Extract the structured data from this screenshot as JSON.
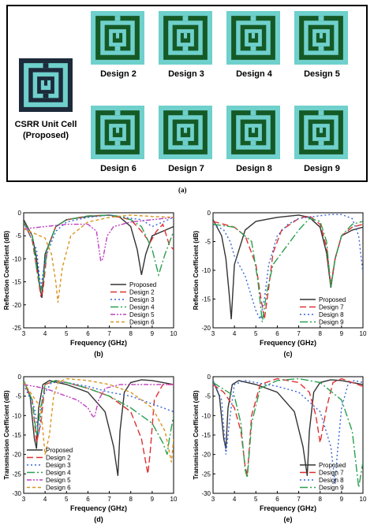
{
  "panel_a": {
    "unit_cell_label_line1": "CSRR Unit Cell",
    "unit_cell_label_line2": "(Proposed)",
    "designs": [
      "Design 2",
      "Design 3",
      "Design 4",
      "Design 5",
      "Design 6",
      "Design 7",
      "Design 8",
      "Design 9"
    ],
    "caption": "(a)",
    "colors": {
      "outer": "#6fd0cc",
      "ring": "#155a26",
      "unit_bg": "#1d2a3a"
    }
  },
  "chart_data": [
    {
      "id": "b",
      "type": "line",
      "caption": "(b)",
      "xlabel": "Frequency (GHz)",
      "ylabel": "Reflection Coefficient (dB)",
      "xlim": [
        3,
        10
      ],
      "ylim": [
        -25,
        0
      ],
      "xticks": [
        3,
        4,
        5,
        6,
        7,
        8,
        9,
        10
      ],
      "yticks": [
        0,
        -5,
        -10,
        -15,
        -20,
        -25
      ],
      "legend_position": "lower-right",
      "series": [
        {
          "name": "Proposed",
          "color": "#333333",
          "dash": "solid",
          "x": [
            3,
            3.4,
            3.6,
            3.75,
            3.85,
            4,
            4.5,
            5,
            6,
            7,
            7.5,
            8,
            8.3,
            8.5,
            8.7,
            9,
            9.5,
            10
          ],
          "y": [
            -1.5,
            -5,
            -10,
            -16,
            -18.5,
            -9,
            -3,
            -1.5,
            -0.8,
            -0.5,
            -1,
            -3,
            -8,
            -13.5,
            -9,
            -5,
            -4,
            -3
          ]
        },
        {
          "name": "Design 2",
          "color": "#e03030",
          "dash": "8,4",
          "x": [
            3,
            3.4,
            3.6,
            3.8,
            3.9,
            4.1,
            4.5,
            5,
            6,
            7,
            8,
            8.5,
            8.9,
            9.2,
            9.5,
            9.8,
            10
          ],
          "y": [
            -2,
            -6,
            -12,
            -18,
            -17,
            -8,
            -3,
            -1.5,
            -0.7,
            -0.5,
            -1.5,
            -4,
            -6.5,
            -4,
            -2.5,
            -7,
            -8
          ]
        },
        {
          "name": "Design 3",
          "color": "#3a66d8",
          "dash": "2,3",
          "x": [
            3,
            3.6,
            3.8,
            4,
            4.5,
            5,
            6,
            7,
            7.5,
            8,
            8.5,
            9,
            9.5,
            10
          ],
          "y": [
            -2,
            -8,
            -16.5,
            -10,
            -4,
            -2,
            -1,
            -0.5,
            -0.8,
            -1.2,
            -1.5,
            -3,
            -2,
            -1
          ]
        },
        {
          "name": "Design 4",
          "color": "#2aa050",
          "dash": "10,3,2,3",
          "x": [
            3,
            3.4,
            3.6,
            3.8,
            3.9,
            4.1,
            4.5,
            5,
            6,
            7,
            7.5,
            8,
            8.5,
            9,
            9.3,
            9.6,
            10
          ],
          "y": [
            -2,
            -5,
            -12,
            -17,
            -15,
            -8,
            -3,
            -1.5,
            -0.7,
            -0.5,
            -0.8,
            -1.5,
            -3,
            -8,
            -13.5,
            -9,
            -4
          ]
        },
        {
          "name": "Design 5",
          "color": "#c040c0",
          "dash": "6,2,2,2,2,2",
          "x": [
            3,
            4,
            5,
            6,
            6.4,
            6.6,
            6.7,
            6.9,
            7.2,
            8,
            9,
            10
          ],
          "y": [
            -3.5,
            -3,
            -2.5,
            -2.5,
            -4,
            -10.5,
            -10,
            -5,
            -3,
            -2,
            -1.5,
            -1
          ]
        },
        {
          "name": "Design 6",
          "color": "#d99520",
          "dash": "4,3",
          "x": [
            3,
            4,
            4.3,
            4.5,
            4.6,
            4.8,
            5.2,
            6,
            7,
            8,
            9,
            10
          ],
          "y": [
            -3.5,
            -5.5,
            -9,
            -15,
            -19.5,
            -12,
            -5,
            -2,
            -1,
            -0.5,
            -0.8,
            -1
          ]
        }
      ]
    },
    {
      "id": "c",
      "type": "line",
      "caption": "(c)",
      "xlabel": "Frequency (GHz)",
      "ylabel": "Reflection Coefficient (dB)",
      "xlim": [
        3,
        10
      ],
      "ylim": [
        -20,
        0
      ],
      "xticks": [
        3,
        4,
        5,
        6,
        7,
        8,
        9,
        10
      ],
      "yticks": [
        0,
        -5,
        -10,
        -15,
        -20
      ],
      "legend_position": "lower-right",
      "series": [
        {
          "name": "Proposed",
          "color": "#333333",
          "dash": "solid",
          "x": [
            3,
            3.4,
            3.6,
            3.75,
            3.85,
            4,
            4.5,
            5,
            6,
            7,
            7.5,
            8,
            8.3,
            8.5,
            8.7,
            9,
            9.5,
            10
          ],
          "y": [
            -1.2,
            -4,
            -8,
            -14,
            -18.5,
            -9,
            -3,
            -1.5,
            -0.8,
            -0.4,
            -0.8,
            -2.5,
            -7,
            -13,
            -8,
            -4,
            -3,
            -2.5
          ]
        },
        {
          "name": "Design 7",
          "color": "#e03030",
          "dash": "8,4",
          "x": [
            3,
            3.5,
            4,
            4.5,
            5,
            5.2,
            5.4,
            5.6,
            5.8,
            6.2,
            7,
            7.5,
            8,
            8.3,
            8.5,
            8.7,
            9,
            9.5,
            10
          ],
          "y": [
            -1.5,
            -2,
            -2.5,
            -4,
            -9,
            -14,
            -18.5,
            -13,
            -7,
            -3,
            -1,
            -0.5,
            -2,
            -6,
            -12.5,
            -8,
            -4,
            -2.5,
            -2
          ]
        },
        {
          "name": "Design 8",
          "color": "#3a66d8",
          "dash": "2,3",
          "x": [
            3,
            3.5,
            3.8,
            4,
            4.5,
            5,
            5.2,
            5.4,
            5.6,
            6,
            6.5,
            7,
            8,
            8.5,
            9,
            9.5,
            9.8,
            10
          ],
          "y": [
            -2,
            -3,
            -5,
            -7.5,
            -11,
            -17,
            -18.5,
            -15,
            -9,
            -4,
            -2,
            -1,
            -0.5,
            -0.3,
            -0.3,
            -1,
            -4,
            -10.5
          ]
        },
        {
          "name": "Design 9",
          "color": "#2aa050",
          "dash": "10,3,2,3",
          "x": [
            3,
            4,
            4.8,
            5.1,
            5.3,
            5.5,
            5.8,
            6.5,
            7,
            7.5,
            8,
            8.3,
            8.5,
            8.7,
            9,
            9.5,
            10
          ],
          "y": [
            -2,
            -2.5,
            -5,
            -12,
            -19,
            -14,
            -9,
            -5.5,
            -3,
            -1,
            -1.5,
            -5,
            -13,
            -8,
            -4,
            -2,
            -1.5
          ]
        }
      ]
    },
    {
      "id": "d",
      "type": "line",
      "caption": "(d)",
      "xlabel": "Frequency (GHz)",
      "ylabel": "Transmission Coefficient (dB)",
      "xlim": [
        3,
        10
      ],
      "ylim": [
        -30,
        0
      ],
      "xticks": [
        3,
        4,
        5,
        6,
        7,
        8,
        9,
        10
      ],
      "yticks": [
        0,
        -5,
        -10,
        -15,
        -20,
        -25,
        -30
      ],
      "legend_position": "lower-left",
      "series": [
        {
          "name": "Proposed",
          "color": "#333333",
          "dash": "solid",
          "x": [
            3,
            3.3,
            3.5,
            3.6,
            3.7,
            3.9,
            4.2,
            5,
            6,
            6.8,
            7.2,
            7.4,
            7.5,
            7.7,
            8,
            8.5,
            9,
            10
          ],
          "y": [
            -1,
            -5,
            -16,
            -18.5,
            -8,
            -2,
            -1,
            -2,
            -4,
            -9,
            -18,
            -25.5,
            -14,
            -4,
            -1.5,
            -0.8,
            -1,
            -2
          ]
        },
        {
          "name": "Design 2",
          "color": "#e03030",
          "dash": "8,4",
          "x": [
            3,
            3.4,
            3.6,
            3.8,
            4,
            4.5,
            5,
            6,
            7,
            8,
            8.5,
            8.8,
            8.9,
            9.1,
            9.5,
            10
          ],
          "y": [
            -1,
            -6,
            -17,
            -12,
            -2,
            -1,
            -1.5,
            -3,
            -5,
            -9,
            -16,
            -25,
            -20,
            -6,
            -2,
            -2
          ]
        },
        {
          "name": "Design 3",
          "color": "#3a66d8",
          "dash": "2,3",
          "x": [
            3,
            3.5,
            3.7,
            3.9,
            4.3,
            5,
            6,
            7,
            8,
            9,
            10
          ],
          "y": [
            -2,
            -8,
            -15,
            -5,
            -1.5,
            -1.5,
            -2.5,
            -4,
            -5,
            -7,
            -9
          ]
        },
        {
          "name": "Design 4",
          "color": "#2aa050",
          "dash": "10,3,2,3",
          "x": [
            3,
            3.4,
            3.6,
            3.8,
            4,
            4.5,
            5,
            6,
            7,
            8,
            9,
            9.5,
            9.7,
            9.8,
            10
          ],
          "y": [
            -1,
            -6,
            -15,
            -8,
            -2,
            -1,
            -1.5,
            -3,
            -5,
            -8,
            -12,
            -17,
            -20,
            -16,
            -10
          ]
        },
        {
          "name": "Design 5",
          "color": "#c040c0",
          "dash": "6,2,2,2,2,2",
          "x": [
            3,
            4,
            5,
            5.5,
            6,
            6.2,
            6.3,
            6.5,
            6.8,
            7.5,
            8.5,
            10
          ],
          "y": [
            -2,
            -3,
            -5,
            -6,
            -8,
            -10,
            -10.5,
            -6,
            -3,
            -2,
            -2,
            -2
          ]
        },
        {
          "name": "Design 6",
          "color": "#d99520",
          "dash": "4,3",
          "x": [
            3,
            3.8,
            4,
            4.2,
            4.4,
            4.6,
            5,
            6,
            7,
            8,
            9,
            9.6,
            9.9,
            10
          ],
          "y": [
            -1.5,
            -8,
            -20,
            -15,
            -5,
            -1.5,
            -0.5,
            -1,
            -2,
            -4,
            -8,
            -14,
            -22,
            -16
          ]
        }
      ]
    },
    {
      "id": "e",
      "type": "line",
      "caption": "(e)",
      "xlabel": "Frequency (GHz)",
      "ylabel": "Transmission Coefficient (dB)",
      "xlim": [
        3,
        10
      ],
      "ylim": [
        -30,
        0
      ],
      "xticks": [
        3,
        4,
        5,
        6,
        7,
        8,
        9,
        10
      ],
      "yticks": [
        0,
        -5,
        -10,
        -15,
        -20,
        -25,
        -30
      ],
      "legend_position": "lower-right",
      "series": [
        {
          "name": "Proposed",
          "color": "#333333",
          "dash": "solid",
          "x": [
            3,
            3.3,
            3.5,
            3.6,
            3.7,
            3.9,
            4.2,
            5,
            6,
            6.8,
            7.2,
            7.4,
            7.5,
            7.7,
            8,
            8.5,
            9,
            10
          ],
          "y": [
            -1,
            -5,
            -16,
            -18.5,
            -8,
            -2,
            -1,
            -2,
            -4,
            -9,
            -18,
            -25.5,
            -14,
            -4,
            -1.5,
            -0.8,
            -1,
            -2
          ]
        },
        {
          "name": "Design 7",
          "color": "#e03030",
          "dash": "8,4",
          "x": [
            3,
            3.5,
            4,
            4.3,
            4.5,
            4.6,
            4.8,
            5.2,
            6,
            7,
            7.5,
            7.8,
            8,
            8.3,
            8.6,
            9,
            10
          ],
          "y": [
            -2,
            -4,
            -8,
            -14,
            -23,
            -25.5,
            -10,
            -2,
            -0.5,
            -1.5,
            -4,
            -10,
            -17,
            -8,
            -1.5,
            -0.5,
            -2.5
          ]
        },
        {
          "name": "Design 8",
          "color": "#3a66d8",
          "dash": "2,3",
          "x": [
            3,
            3.4,
            3.6,
            3.8,
            4,
            4.5,
            5,
            6,
            7,
            8,
            8.5,
            8.7,
            8.8,
            9,
            9.3,
            9.6,
            10
          ],
          "y": [
            -1,
            -6,
            -20,
            -10,
            -2,
            -1,
            -1.5,
            -2.5,
            -4,
            -9,
            -18,
            -27.5,
            -20,
            -8,
            -2,
            -1,
            -1.5
          ]
        },
        {
          "name": "Design 9",
          "color": "#2aa050",
          "dash": "10,3,2,3",
          "x": [
            3,
            4,
            4.3,
            4.5,
            4.6,
            4.8,
            5.2,
            6,
            7,
            8,
            9,
            9.5,
            9.8,
            10
          ],
          "y": [
            -1.5,
            -5,
            -12,
            -24,
            -26,
            -12,
            -3,
            -1,
            -0.5,
            -1.5,
            -6,
            -14,
            -28.5,
            -22
          ]
        }
      ]
    }
  ]
}
